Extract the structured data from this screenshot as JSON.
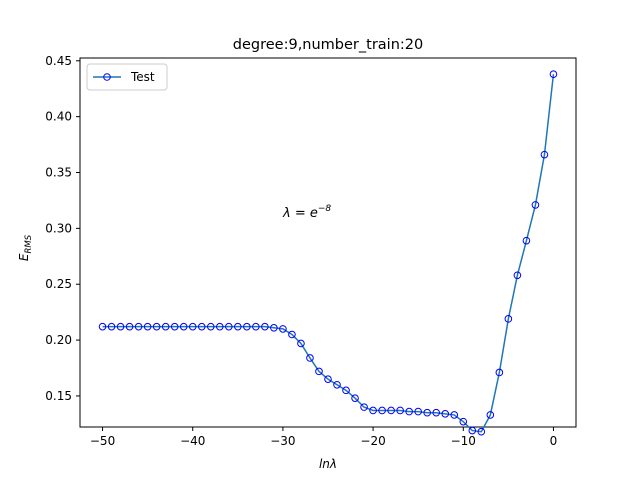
{
  "chart_data": {
    "type": "line",
    "title": "degree:9,number_train:20",
    "xlabel": "lnλ",
    "ylabel_main": "E",
    "ylabel_sub": "RMS",
    "annotation": {
      "base": "λ = e",
      "exponent": "−8"
    },
    "xlim": [
      -52.5,
      2.5
    ],
    "ylim": [
      0.1222,
      0.4525
    ],
    "x_ticks": [
      -50,
      -40,
      -30,
      -20,
      -10,
      0
    ],
    "x_tick_labels": [
      "−50",
      "−40",
      "−30",
      "−20",
      "−10",
      "0"
    ],
    "y_ticks": [
      0.15,
      0.2,
      0.25,
      0.3,
      0.35,
      0.4,
      0.45
    ],
    "y_tick_labels": [
      "0.15",
      "0.20",
      "0.25",
      "0.30",
      "0.35",
      "0.40",
      "0.45"
    ],
    "legend_position": "top-left",
    "series": [
      {
        "name": "Test",
        "line_color": "#1f77b4",
        "marker_color": "#0000ff",
        "x": [
          -50,
          -49,
          -48,
          -47,
          -46,
          -45,
          -44,
          -43,
          -42,
          -41,
          -40,
          -39,
          -38,
          -37,
          -36,
          -35,
          -34,
          -33,
          -32,
          -31,
          -30,
          -29,
          -28,
          -27,
          -26,
          -25,
          -24,
          -23,
          -22,
          -21,
          -20,
          -19,
          -18,
          -17,
          -16,
          -15,
          -14,
          -13,
          -12,
          -11,
          -10,
          -9,
          -8,
          -7,
          -6,
          -5,
          -4,
          -3,
          -2,
          -1,
          0
        ],
        "y": [
          0.212,
          0.212,
          0.212,
          0.212,
          0.212,
          0.212,
          0.212,
          0.212,
          0.212,
          0.212,
          0.212,
          0.212,
          0.212,
          0.212,
          0.212,
          0.212,
          0.212,
          0.212,
          0.212,
          0.211,
          0.21,
          0.205,
          0.197,
          0.184,
          0.172,
          0.165,
          0.16,
          0.155,
          0.148,
          0.14,
          0.137,
          0.137,
          0.137,
          0.137,
          0.136,
          0.136,
          0.135,
          0.135,
          0.134,
          0.133,
          0.127,
          0.119,
          0.118,
          0.133,
          0.171,
          0.219,
          0.258,
          0.289,
          0.321,
          0.366,
          0.438
        ]
      }
    ]
  }
}
